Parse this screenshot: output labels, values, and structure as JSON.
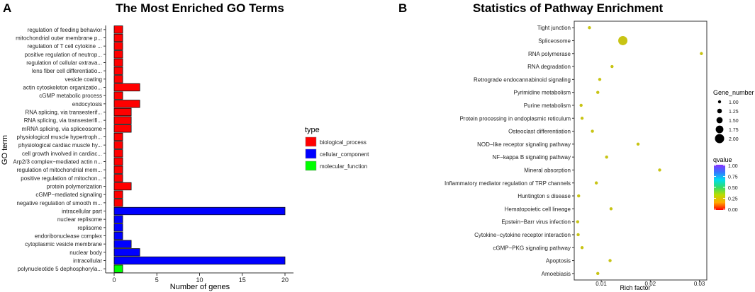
{
  "chart_data": [
    {
      "panel": "A",
      "type": "bar",
      "orientation": "horizontal",
      "title": "The Most Enriched GO Terms",
      "xlabel": "Number of genes",
      "ylabel": "GO term",
      "xlim": [
        0,
        20
      ],
      "xticks": [
        "0",
        "5",
        "10",
        "15",
        "20"
      ],
      "legend": {
        "title": "type",
        "position": "right",
        "items": [
          {
            "name": "biological_process",
            "color": "#ff0000"
          },
          {
            "name": "cellular_component",
            "color": "#0000ff"
          },
          {
            "name": "molecular_function",
            "color": "#00ff00"
          }
        ]
      },
      "bars": [
        {
          "term": "regulation of feeding behavior",
          "value": 1,
          "type": "biological_process"
        },
        {
          "term": "mitochondrial outer membrane p...",
          "value": 1,
          "type": "biological_process"
        },
        {
          "term": "regulation of T cell cytokine ...",
          "value": 1,
          "type": "biological_process"
        },
        {
          "term": "positive regulation of neutrop...",
          "value": 1,
          "type": "biological_process"
        },
        {
          "term": "regulation of cellular extrava...",
          "value": 1,
          "type": "biological_process"
        },
        {
          "term": "lens fiber cell differentiatio...",
          "value": 1,
          "type": "biological_process"
        },
        {
          "term": "vesicle coating",
          "value": 1,
          "type": "biological_process"
        },
        {
          "term": "actin cytoskeleton organizatio...",
          "value": 3,
          "type": "biological_process"
        },
        {
          "term": "cGMP metabolic process",
          "value": 1,
          "type": "biological_process"
        },
        {
          "term": "endocytosis",
          "value": 3,
          "type": "biological_process"
        },
        {
          "term": "RNA splicing, via transesterif...",
          "value": 2,
          "type": "biological_process"
        },
        {
          "term": "RNA splicing, via transesterifi...",
          "value": 2,
          "type": "biological_process"
        },
        {
          "term": "mRNA splicing, via spliceosome",
          "value": 2,
          "type": "biological_process"
        },
        {
          "term": "physiological muscle hypertroph...",
          "value": 1,
          "type": "biological_process"
        },
        {
          "term": "physiological cardiac muscle hy...",
          "value": 1,
          "type": "biological_process"
        },
        {
          "term": "cell growth involved in cardiac...",
          "value": 1,
          "type": "biological_process"
        },
        {
          "term": "Arp2/3 complex−mediated actin n...",
          "value": 1,
          "type": "biological_process"
        },
        {
          "term": "regulation of mitochondrial mem...",
          "value": 1,
          "type": "biological_process"
        },
        {
          "term": "positive regulation of mitochon...",
          "value": 1,
          "type": "biological_process"
        },
        {
          "term": "protein polymerization",
          "value": 2,
          "type": "biological_process"
        },
        {
          "term": "cGMP−mediated signaling",
          "value": 1,
          "type": "biological_process"
        },
        {
          "term": "negative regulation of smooth m...",
          "value": 1,
          "type": "biological_process"
        },
        {
          "term": "intracellular part",
          "value": 20,
          "type": "cellular_component"
        },
        {
          "term": "nuclear replisome",
          "value": 1,
          "type": "cellular_component"
        },
        {
          "term": "replisome",
          "value": 1,
          "type": "cellular_component"
        },
        {
          "term": "endoribonuclease complex",
          "value": 1,
          "type": "cellular_component"
        },
        {
          "term": "cytoplasmic vesicle membrane",
          "value": 2,
          "type": "cellular_component"
        },
        {
          "term": "nuclear body",
          "value": 3,
          "type": "cellular_component"
        },
        {
          "term": "intracellular",
          "value": 20,
          "type": "cellular_component"
        },
        {
          "term": "polynucleotide 5 dephosphoryla...",
          "value": 1,
          "type": "molecular_function"
        }
      ]
    },
    {
      "panel": "B",
      "type": "scatter",
      "title": "Statistics of Pathway Enrichment",
      "xlabel": "Rich factor",
      "ylabel": "",
      "xlim": [
        0.0045,
        0.0315
      ],
      "xticks": [
        {
          "label": "0.01",
          "value": 0.01
        },
        {
          "label": "0.02",
          "value": 0.02
        },
        {
          "label": "0.03",
          "value": 0.03
        }
      ],
      "size_legend": {
        "title": "Gene_number",
        "position": "right",
        "values": [
          {
            "label": "1.00",
            "value": 1.0
          },
          {
            "label": "1.25",
            "value": 1.25
          },
          {
            "label": "1.50",
            "value": 1.5
          },
          {
            "label": "1.75",
            "value": 1.75
          },
          {
            "label": "2.00",
            "value": 2.0
          }
        ]
      },
      "color_legend": {
        "title": "qvalue",
        "position": "right",
        "ticks": [
          "1.00",
          "0.75",
          "0.50",
          "0.25",
          "0.00"
        ],
        "stops": [
          "#8833ff",
          "#3377ff",
          "#00ddee",
          "#33dd66",
          "#bbdd00",
          "#ffaa00",
          "#ff0000"
        ]
      },
      "points": [
        {
          "pathway": "Tight junction",
          "rich_factor": 0.0076,
          "gene_number": 1,
          "color": "#c8c414"
        },
        {
          "pathway": "Spliceosome",
          "rich_factor": 0.0144,
          "gene_number": 2,
          "color": "#c8c414"
        },
        {
          "pathway": "RNA polymerase",
          "rich_factor": 0.0304,
          "gene_number": 1,
          "color": "#c8c414"
        },
        {
          "pathway": "RNA degradation",
          "rich_factor": 0.0122,
          "gene_number": 1,
          "color": "#c8c414"
        },
        {
          "pathway": "Retrograde endocannabinoid signaling",
          "rich_factor": 0.0097,
          "gene_number": 1,
          "color": "#c8c414"
        },
        {
          "pathway": "Pyrimidine metabolism",
          "rich_factor": 0.0093,
          "gene_number": 1,
          "color": "#c8c414"
        },
        {
          "pathway": "Purine metabolism",
          "rich_factor": 0.0059,
          "gene_number": 1,
          "color": "#c8c414"
        },
        {
          "pathway": "Protein processing in endoplasmic reticulum",
          "rich_factor": 0.0061,
          "gene_number": 1,
          "color": "#c8c414"
        },
        {
          "pathway": "Osteoclast differentiation",
          "rich_factor": 0.0082,
          "gene_number": 1,
          "color": "#c8c414"
        },
        {
          "pathway": "NOD−like receptor signaling pathway",
          "rich_factor": 0.0175,
          "gene_number": 1,
          "color": "#c8c414"
        },
        {
          "pathway": "NF−kappa B signaling pathway",
          "rich_factor": 0.0111,
          "gene_number": 1,
          "color": "#c8c414"
        },
        {
          "pathway": "Mineral absorption",
          "rich_factor": 0.0219,
          "gene_number": 1,
          "color": "#c8c414"
        },
        {
          "pathway": "Inflammatory mediator regulation of TRP channels",
          "rich_factor": 0.009,
          "gene_number": 1,
          "color": "#c8c414"
        },
        {
          "pathway": "Huntington s disease",
          "rich_factor": 0.0054,
          "gene_number": 1,
          "color": "#c8c414"
        },
        {
          "pathway": "Hematopoietic cell lineage",
          "rich_factor": 0.012,
          "gene_number": 1,
          "color": "#c8c414"
        },
        {
          "pathway": "Epstein−Barr virus infection",
          "rich_factor": 0.0052,
          "gene_number": 1,
          "color": "#c8c414"
        },
        {
          "pathway": "Cytokine−cytokine receptor interaction",
          "rich_factor": 0.0053,
          "gene_number": 1,
          "color": "#c8c414"
        },
        {
          "pathway": "cGMP−PKG signaling pathway",
          "rich_factor": 0.0061,
          "gene_number": 1,
          "color": "#c8c414"
        },
        {
          "pathway": "Apoptosis",
          "rich_factor": 0.0118,
          "gene_number": 1,
          "color": "#c8c414"
        },
        {
          "pathway": "Amoebiasis",
          "rich_factor": 0.0093,
          "gene_number": 1,
          "color": "#c8c414"
        }
      ]
    }
  ]
}
